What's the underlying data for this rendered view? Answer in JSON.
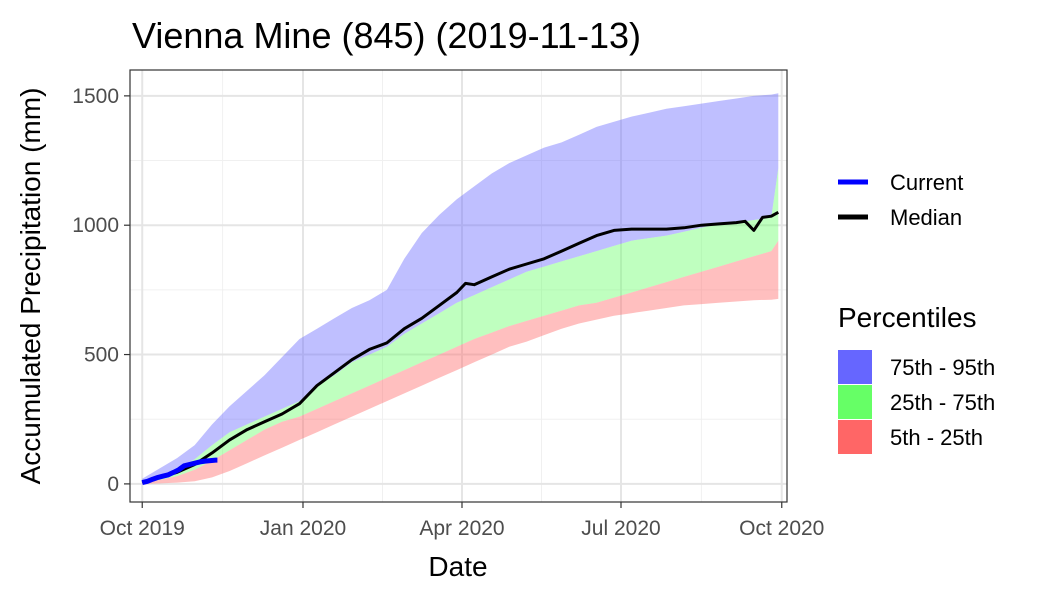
{
  "chart_data": {
    "type": "area",
    "title": "Vienna Mine (845) (2019-11-13)",
    "xlabel": "Date",
    "ylabel": "Accumulated Precipitation (mm)",
    "x_unit": "days since 2019-10-01",
    "xlim": [
      -7,
      369
    ],
    "ylim": [
      -70,
      1600
    ],
    "x_ticks": [
      {
        "day": 0,
        "label": "Oct 2019"
      },
      {
        "day": 92,
        "label": "Jan 2020"
      },
      {
        "day": 183,
        "label": "Apr 2020"
      },
      {
        "day": 274,
        "label": "Jul 2020"
      },
      {
        "day": 366,
        "label": "Oct 2020"
      }
    ],
    "y_ticks": [
      {
        "value": 0,
        "label": "0"
      },
      {
        "value": 500,
        "label": "500"
      },
      {
        "value": 1000,
        "label": "1000"
      },
      {
        "value": 1500,
        "label": "1500"
      }
    ],
    "bands": [
      {
        "name": "75th - 95th",
        "color": "#6666ff",
        "x": [
          0,
          10,
          20,
          30,
          40,
          50,
          60,
          70,
          80,
          90,
          100,
          110,
          120,
          130,
          140,
          150,
          160,
          170,
          180,
          190,
          200,
          210,
          220,
          230,
          240,
          250,
          260,
          270,
          280,
          290,
          300,
          310,
          320,
          330,
          340,
          350,
          360,
          364
        ],
        "lower": [
          8,
          30,
          60,
          95,
          150,
          200,
          230,
          260,
          290,
          320,
          380,
          420,
          470,
          500,
          530,
          580,
          620,
          660,
          700,
          730,
          760,
          790,
          820,
          840,
          860,
          880,
          900,
          920,
          940,
          950,
          960,
          975,
          990,
          1005,
          1010,
          1020,
          1030,
          1220
        ],
        "upper": [
          20,
          60,
          100,
          150,
          230,
          300,
          360,
          420,
          490,
          560,
          600,
          640,
          680,
          710,
          750,
          870,
          970,
          1040,
          1100,
          1150,
          1200,
          1240,
          1270,
          1300,
          1320,
          1350,
          1380,
          1400,
          1420,
          1435,
          1450,
          1460,
          1470,
          1480,
          1490,
          1500,
          1505,
          1510
        ]
      },
      {
        "name": "25th - 75th",
        "color": "#66ff66",
        "x": [
          0,
          10,
          20,
          30,
          40,
          50,
          60,
          70,
          80,
          90,
          100,
          110,
          120,
          130,
          140,
          150,
          160,
          170,
          180,
          190,
          200,
          210,
          220,
          230,
          240,
          250,
          260,
          270,
          280,
          290,
          300,
          310,
          320,
          330,
          340,
          350,
          360,
          364
        ],
        "lower": [
          5,
          15,
          30,
          55,
          90,
          130,
          170,
          210,
          240,
          260,
          290,
          320,
          350,
          380,
          410,
          440,
          470,
          500,
          530,
          560,
          585,
          610,
          630,
          650,
          670,
          690,
          700,
          720,
          740,
          760,
          780,
          800,
          820,
          840,
          860,
          880,
          900,
          940
        ],
        "upper": [
          8,
          30,
          60,
          95,
          150,
          200,
          230,
          260,
          290,
          320,
          380,
          420,
          470,
          500,
          530,
          580,
          620,
          660,
          700,
          730,
          760,
          790,
          820,
          840,
          860,
          880,
          900,
          920,
          940,
          950,
          960,
          975,
          990,
          1005,
          1010,
          1020,
          1030,
          1220
        ]
      },
      {
        "name": "5th - 25th",
        "color": "#ff6666",
        "x": [
          0,
          10,
          20,
          30,
          40,
          50,
          60,
          70,
          80,
          90,
          100,
          110,
          120,
          130,
          140,
          150,
          160,
          170,
          180,
          190,
          200,
          210,
          220,
          230,
          240,
          250,
          260,
          270,
          280,
          290,
          300,
          310,
          320,
          330,
          340,
          350,
          360,
          364
        ],
        "lower": [
          0,
          2,
          5,
          10,
          25,
          50,
          80,
          110,
          140,
          170,
          200,
          230,
          260,
          290,
          320,
          350,
          380,
          410,
          440,
          470,
          500,
          530,
          550,
          575,
          600,
          620,
          635,
          650,
          660,
          670,
          680,
          690,
          695,
          700,
          705,
          710,
          712,
          715
        ],
        "upper": [
          5,
          15,
          30,
          55,
          90,
          130,
          170,
          210,
          240,
          260,
          290,
          320,
          350,
          380,
          410,
          440,
          470,
          500,
          530,
          560,
          585,
          610,
          630,
          650,
          670,
          690,
          700,
          720,
          740,
          760,
          780,
          800,
          820,
          840,
          860,
          880,
          900,
          940
        ]
      }
    ],
    "series": [
      {
        "name": "Median",
        "color": "#000000",
        "x": [
          0,
          10,
          20,
          30,
          40,
          50,
          60,
          70,
          80,
          90,
          100,
          110,
          120,
          130,
          140,
          150,
          160,
          170,
          180,
          185,
          190,
          200,
          210,
          220,
          230,
          240,
          250,
          260,
          270,
          280,
          290,
          300,
          310,
          320,
          330,
          340,
          345,
          350,
          355,
          360,
          364
        ],
        "y": [
          5,
          25,
          45,
          75,
          120,
          170,
          210,
          240,
          270,
          310,
          380,
          430,
          480,
          520,
          545,
          600,
          640,
          690,
          740,
          775,
          770,
          800,
          830,
          850,
          870,
          900,
          930,
          960,
          980,
          985,
          985,
          985,
          990,
          1000,
          1005,
          1010,
          1015,
          980,
          1030,
          1035,
          1050
        ]
      },
      {
        "name": "Current",
        "color": "#0000ff",
        "x": [
          0,
          3,
          6,
          9,
          12,
          15,
          18,
          21,
          24,
          27,
          30,
          33,
          36,
          39,
          42,
          43
        ],
        "y": [
          5,
          10,
          18,
          25,
          30,
          35,
          45,
          55,
          70,
          75,
          80,
          85,
          88,
          90,
          92,
          92
        ]
      }
    ],
    "legend": {
      "lines_title": "",
      "lines": [
        {
          "label": "Current",
          "color": "#0000ff"
        },
        {
          "label": "Median",
          "color": "#000000"
        }
      ],
      "fills_title": "Percentiles",
      "fills": [
        {
          "label": "75th - 95th",
          "color": "#6666ff"
        },
        {
          "label": "25th - 75th",
          "color": "#66ff66"
        },
        {
          "label": "5th - 25th",
          "color": "#ff6666"
        }
      ],
      "position": "right"
    },
    "grid": true
  }
}
